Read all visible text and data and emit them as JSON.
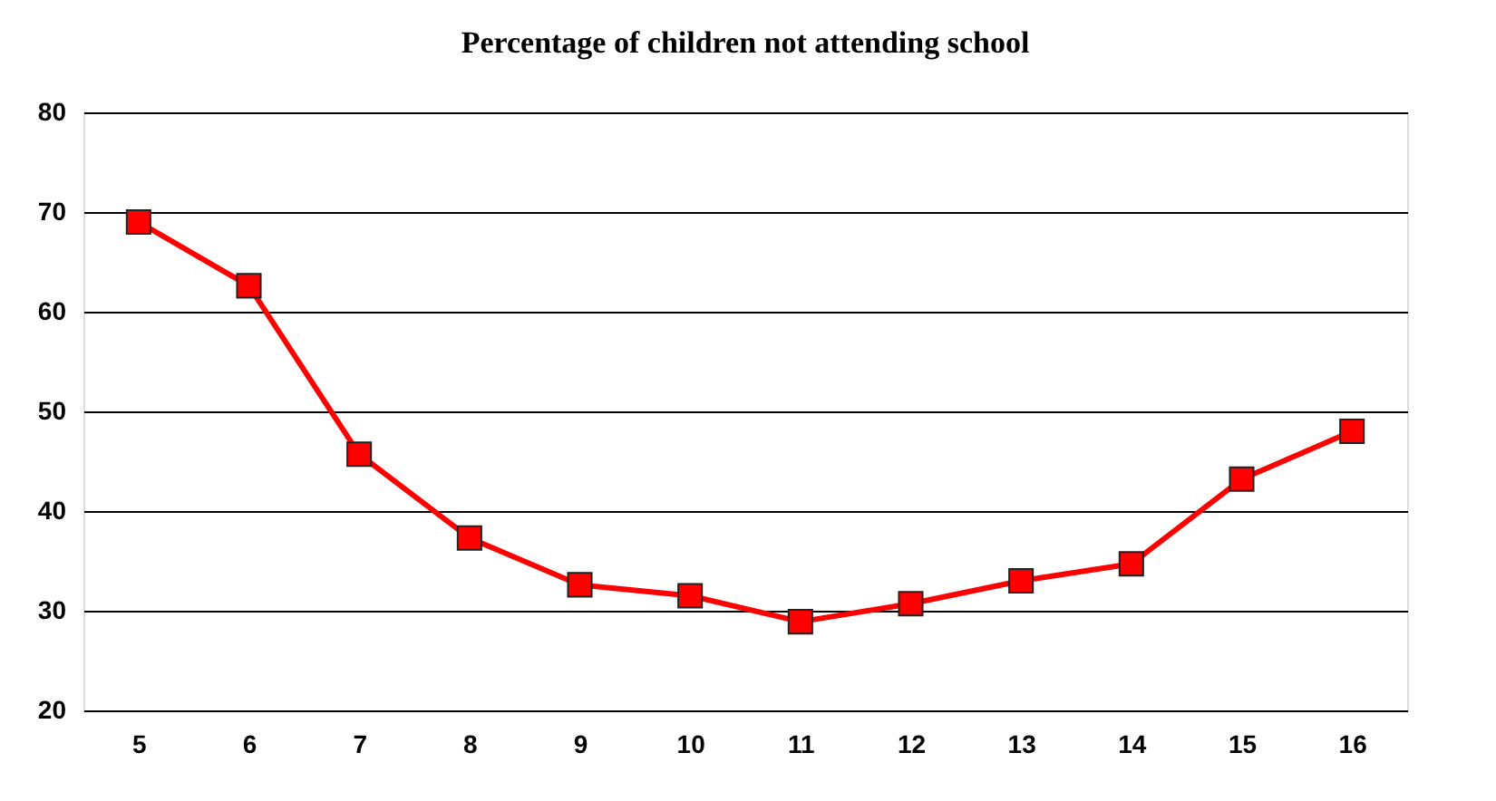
{
  "chart_data": {
    "type": "line",
    "title": "Percentage of children not attending school",
    "categories": [
      "5",
      "6",
      "7",
      "8",
      "9",
      "10",
      "11",
      "12",
      "13",
      "14",
      "15",
      "16"
    ],
    "series": [
      {
        "color": "#ff0000",
        "values": [
          69,
          62.6,
          45.7,
          37.3,
          32.6,
          31.5,
          28.9,
          30.7,
          33.0,
          34.7,
          43.2,
          48.0
        ]
      }
    ],
    "ylim": [
      20,
      80
    ],
    "yticks": [
      20,
      30,
      40,
      50,
      60,
      70,
      80
    ],
    "grid": "y",
    "marker": "square",
    "line_style": "solid",
    "legend": false
  }
}
